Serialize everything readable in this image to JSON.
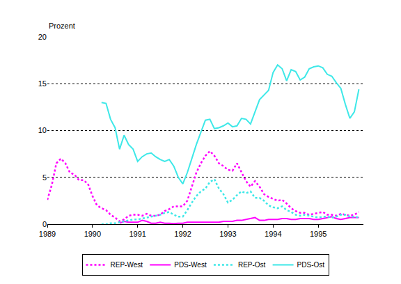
{
  "chart_data": {
    "type": "line",
    "y_label": "Prozent",
    "x": [
      1989.0,
      1989.1,
      1989.2,
      1989.3,
      1989.4,
      1989.5,
      1989.6,
      1989.7,
      1989.8,
      1989.9,
      1990.0,
      1990.1,
      1990.2,
      1990.3,
      1990.4,
      1990.5,
      1990.6,
      1990.7,
      1990.8,
      1990.9,
      1991.0,
      1991.1,
      1991.2,
      1991.3,
      1991.4,
      1991.5,
      1991.6,
      1991.7,
      1991.8,
      1991.9,
      1992.0,
      1992.1,
      1992.2,
      1992.3,
      1992.4,
      1992.5,
      1992.6,
      1992.7,
      1992.8,
      1992.9,
      1993.0,
      1993.1,
      1993.2,
      1993.3,
      1993.4,
      1993.5,
      1993.6,
      1993.7,
      1993.8,
      1993.9,
      1994.0,
      1994.1,
      1994.2,
      1994.3,
      1994.4,
      1994.5,
      1994.6,
      1994.7,
      1994.8,
      1994.9,
      1995.0,
      1995.1,
      1995.2,
      1995.3,
      1995.4,
      1995.5,
      1995.6,
      1995.7,
      1995.8,
      1995.9
    ],
    "series": [
      {
        "name": "REP-West",
        "color": "#ff00ff",
        "line_style": "dotted",
        "values": [
          2.6,
          4.2,
          6.5,
          7.0,
          6.5,
          5.5,
          5.3,
          4.7,
          4.7,
          4.3,
          3.0,
          2.0,
          1.7,
          1.5,
          1.0,
          0.7,
          0.3,
          0.5,
          0.9,
          1.0,
          1.0,
          0.9,
          1.1,
          0.9,
          0.9,
          1.0,
          1.4,
          1.6,
          1.9,
          1.9,
          1.9,
          2.5,
          4.0,
          5.5,
          6.5,
          7.3,
          7.8,
          7.3,
          6.5,
          6.2,
          5.8,
          5.7,
          6.5,
          5.6,
          4.6,
          4.0,
          4.6,
          4.0,
          3.2,
          2.9,
          2.7,
          2.5,
          2.6,
          2.2,
          1.7,
          1.4,
          1.2,
          1.2,
          1.0,
          1.1,
          1.2,
          1.3,
          1.0,
          1.0,
          0.9,
          1.1,
          1.0,
          0.9,
          1.0,
          1.3
        ]
      },
      {
        "name": "PDS-West",
        "color": "#ff00ff",
        "line_style": "solid",
        "values": [
          null,
          null,
          null,
          null,
          null,
          null,
          null,
          null,
          null,
          null,
          null,
          null,
          null,
          null,
          null,
          null,
          0.1,
          0.3,
          0.2,
          0.2,
          0.2,
          0.4,
          0.3,
          0.1,
          0.1,
          0.2,
          0.1,
          0.1,
          0.05,
          0.1,
          0.1,
          0.2,
          0.2,
          0.2,
          0.2,
          0.2,
          0.2,
          0.2,
          0.2,
          0.3,
          0.3,
          0.3,
          0.4,
          0.4,
          0.5,
          0.6,
          0.7,
          0.4,
          0.4,
          0.5,
          0.5,
          0.5,
          0.6,
          0.6,
          0.5,
          0.5,
          0.6,
          0.6,
          0.6,
          0.5,
          0.5,
          0.6,
          0.7,
          0.8,
          0.6,
          0.5,
          0.6,
          0.7,
          0.7,
          0.7
        ]
      },
      {
        "name": "REP-Ost",
        "color": "#3ee8e8",
        "line_style": "dotted",
        "values": [
          null,
          null,
          null,
          null,
          null,
          null,
          null,
          null,
          null,
          null,
          null,
          null,
          0,
          0,
          0.1,
          0.1,
          0.2,
          0.3,
          0.4,
          0.5,
          0.5,
          0.6,
          0.7,
          0.8,
          0.9,
          1.0,
          1.2,
          1.3,
          1.0,
          0.8,
          0.8,
          1.5,
          2.3,
          3.0,
          3.5,
          3.8,
          4.5,
          4.8,
          3.8,
          3.2,
          2.3,
          2.6,
          3.1,
          3.5,
          3.3,
          3.5,
          2.8,
          2.8,
          2.5,
          2.0,
          1.8,
          1.7,
          1.9,
          1.5,
          1.3,
          1.0,
          0.9,
          1.0,
          0.9,
          0.8,
          0.7,
          0.8,
          0.8,
          0.7,
          0.8,
          1.0,
          1.0,
          0.8,
          0.8,
          0.7
        ]
      },
      {
        "name": "PDS-Ost",
        "color": "#3ee8e8",
        "line_style": "solid",
        "values": [
          null,
          null,
          null,
          null,
          null,
          null,
          null,
          null,
          null,
          null,
          null,
          null,
          13.0,
          12.9,
          11.2,
          10.3,
          8.0,
          9.5,
          8.5,
          8.0,
          6.7,
          7.2,
          7.5,
          7.6,
          7.2,
          6.9,
          6.7,
          6.9,
          6.2,
          5.0,
          4.3,
          5.5,
          7.0,
          8.5,
          9.8,
          11.1,
          11.2,
          10.2,
          10.3,
          10.5,
          10.8,
          10.4,
          10.5,
          11.3,
          11.2,
          10.7,
          12.0,
          13.3,
          13.8,
          14.3,
          16.2,
          17.0,
          16.6,
          15.3,
          16.5,
          16.3,
          15.4,
          15.7,
          16.6,
          16.8,
          16.9,
          16.7,
          16.0,
          15.8,
          15.1,
          14.5,
          12.8,
          11.3,
          12.0,
          14.4
        ]
      }
    ],
    "xlim": [
      1989,
      1996
    ],
    "xticks": [
      1989,
      1990,
      1991,
      1992,
      1993,
      1994,
      1995
    ],
    "ylim": [
      0,
      20
    ],
    "yticks": [
      0,
      5,
      10,
      15,
      20
    ],
    "grid": true,
    "legend": "bottom"
  }
}
